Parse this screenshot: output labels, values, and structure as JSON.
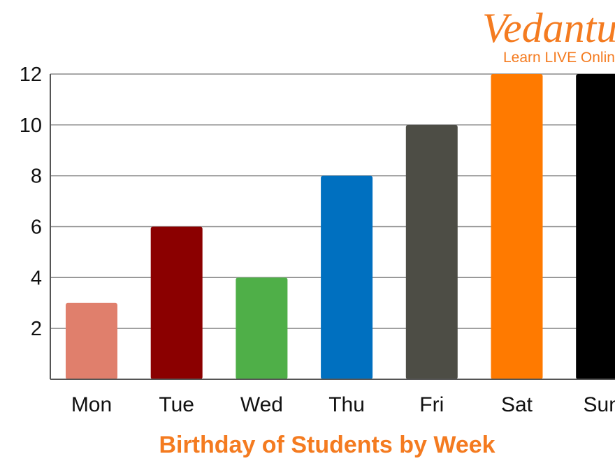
{
  "brand": {
    "name": "Vedantu",
    "tagline": "Learn LIVE Online",
    "color": "#F47B20"
  },
  "chart_data": {
    "type": "bar",
    "categories": [
      "Mon",
      "Tue",
      "Wed",
      "Thu",
      "Fri",
      "Sat",
      "Sun"
    ],
    "values": [
      3,
      6,
      4,
      8,
      10,
      12,
      12
    ],
    "colors": [
      "#E07F6C",
      "#8B0000",
      "#4FAF48",
      "#0070C0",
      "#4D4D45",
      "#FF7A00",
      "#000000"
    ],
    "yticks": [
      2,
      4,
      6,
      8,
      10,
      12
    ],
    "ylim": [
      0,
      12
    ],
    "title": "",
    "xlabel": "Birthday of Students by Week",
    "xlabel_color": "#F47B20",
    "ylabel": "",
    "grid": true
  }
}
